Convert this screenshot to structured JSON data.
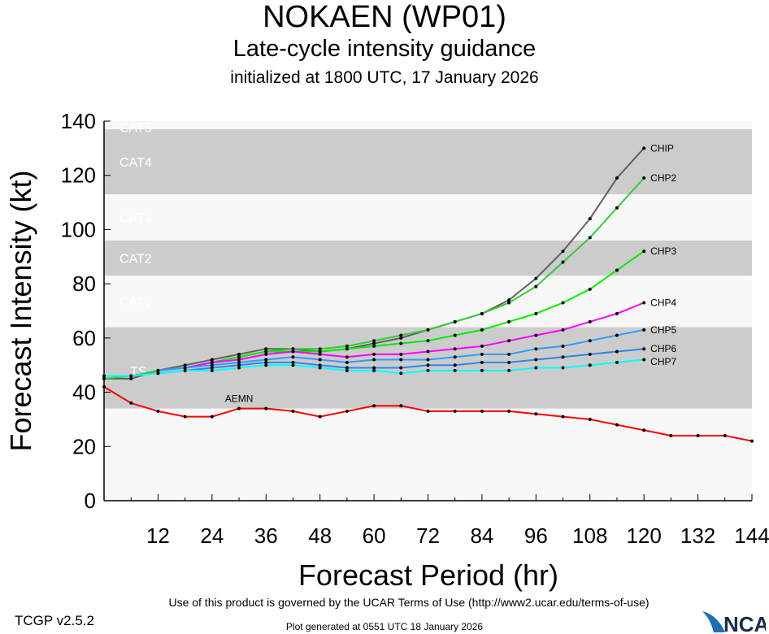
{
  "title": "NOKAEN (WP01)",
  "subtitle": "Late-cycle intensity guidance",
  "initialized": "initialized at 1800 UTC, 17 January 2026",
  "footer": {
    "terms": "Use of this product is governed by the UCAR Terms of Use (http://www2.ucar.edu/terms-of-use)",
    "generated": "Plot generated at 0551 UTC   18 January 2026",
    "version": "TCGP v2.5.2",
    "logo": "NCAR"
  },
  "chart_data": {
    "type": "line",
    "xlabel": "Forecast Period (hr)",
    "ylabel": "Forecast Intensity (kt)",
    "xlim": [
      0,
      144
    ],
    "ylim": [
      0,
      140
    ],
    "xticks": [
      12,
      24,
      36,
      48,
      60,
      72,
      84,
      96,
      108,
      120,
      132,
      144
    ],
    "yticks": [
      0,
      20,
      40,
      60,
      80,
      100,
      120,
      140
    ],
    "bands": [
      {
        "label": "TS",
        "from": 34,
        "to": 64,
        "shaded": true
      },
      {
        "label": "CAT1",
        "from": 64,
        "to": 83,
        "shaded": false
      },
      {
        "label": "CAT2",
        "from": 83,
        "to": 96,
        "shaded": true
      },
      {
        "label": "CAT3",
        "from": 96,
        "to": 113,
        "shaded": false
      },
      {
        "label": "CAT4",
        "from": 113,
        "to": 137,
        "shaded": true
      },
      {
        "label": "CAT5",
        "from": 137,
        "to": 140,
        "shaded": false
      }
    ],
    "colors": {
      "band_shaded": "#cccccc",
      "band_light": "#f8f8f8",
      "band_label": "#ffffff"
    },
    "series": [
      {
        "name": "CHIP",
        "color": "#606060",
        "x": [
          0,
          6,
          12,
          18,
          24,
          30,
          36,
          42,
          48,
          54,
          60,
          66,
          72,
          78,
          84,
          90,
          96,
          102,
          108,
          114,
          120
        ],
        "y": [
          45,
          45,
          48,
          50,
          52,
          54,
          56,
          56,
          55,
          56,
          58,
          60,
          63,
          66,
          69,
          74,
          82,
          92,
          104,
          119,
          130
        ]
      },
      {
        "name": "CHP2",
        "color": "#33cc33",
        "x": [
          0,
          6,
          12,
          18,
          24,
          30,
          36,
          42,
          48,
          54,
          60,
          66,
          72,
          78,
          84,
          90,
          96,
          102,
          108,
          114,
          120
        ],
        "y": [
          45,
          46,
          48,
          49,
          51,
          53,
          55,
          56,
          56,
          57,
          59,
          61,
          63,
          66,
          69,
          73,
          79,
          88,
          97,
          108,
          119
        ]
      },
      {
        "name": "CHP3",
        "color": "#00ee00",
        "x": [
          12,
          18,
          24,
          30,
          36,
          42,
          48,
          54,
          60,
          66,
          72,
          78,
          84,
          90,
          96,
          102,
          108,
          114,
          120
        ],
        "y": [
          48,
          49,
          51,
          53,
          55,
          55,
          55,
          56,
          57,
          58,
          59,
          61,
          63,
          66,
          69,
          73,
          78,
          85,
          92
        ]
      },
      {
        "name": "CHP4",
        "color": "#ff00ff",
        "x": [
          12,
          18,
          24,
          30,
          36,
          42,
          48,
          54,
          60,
          66,
          72,
          78,
          84,
          90,
          96,
          102,
          108,
          114,
          120
        ],
        "y": [
          48,
          49,
          51,
          52,
          54,
          55,
          54,
          53,
          54,
          54,
          55,
          56,
          57,
          59,
          61,
          63,
          66,
          69,
          73
        ]
      },
      {
        "name": "CHP5",
        "color": "#3399ff",
        "x": [
          12,
          18,
          24,
          30,
          36,
          42,
          48,
          54,
          60,
          66,
          72,
          78,
          84,
          90,
          96,
          102,
          108,
          114,
          120
        ],
        "y": [
          48,
          49,
          50,
          51,
          52,
          53,
          52,
          51,
          52,
          52,
          52,
          53,
          54,
          54,
          56,
          57,
          59,
          61,
          63
        ]
      },
      {
        "name": "CHP6",
        "color": "#2f86e6",
        "x": [
          12,
          18,
          24,
          30,
          36,
          42,
          48,
          54,
          60,
          66,
          72,
          78,
          84,
          90,
          96,
          102,
          108,
          114,
          120
        ],
        "y": [
          47,
          48,
          49,
          50,
          51,
          51,
          50,
          49,
          49,
          49,
          50,
          50,
          51,
          51,
          52,
          53,
          54,
          55,
          56
        ]
      },
      {
        "name": "CHP7",
        "color": "#00ffff",
        "x": [
          0,
          6,
          12,
          18,
          24,
          30,
          36,
          42,
          48,
          54,
          60,
          66,
          72,
          78,
          84,
          90,
          96,
          102,
          108,
          114,
          120
        ],
        "y": [
          46,
          46,
          47,
          48,
          48,
          49,
          50,
          50,
          49,
          48,
          48,
          47,
          48,
          48,
          48,
          48,
          49,
          49,
          50,
          51,
          52
        ]
      },
      {
        "name": "AEMN",
        "color": "#ff0000",
        "x": [
          0,
          6,
          12,
          18,
          24,
          30,
          36,
          42,
          48,
          54,
          60,
          66,
          72,
          78,
          84,
          90,
          96,
          102,
          108,
          114,
          120,
          126,
          132,
          138,
          144
        ],
        "y": [
          42,
          36,
          33,
          31,
          31,
          34,
          34,
          33,
          31,
          33,
          35,
          35,
          33,
          33,
          33,
          33,
          32,
          31,
          30,
          28,
          26,
          24,
          24,
          24,
          22
        ]
      }
    ]
  }
}
